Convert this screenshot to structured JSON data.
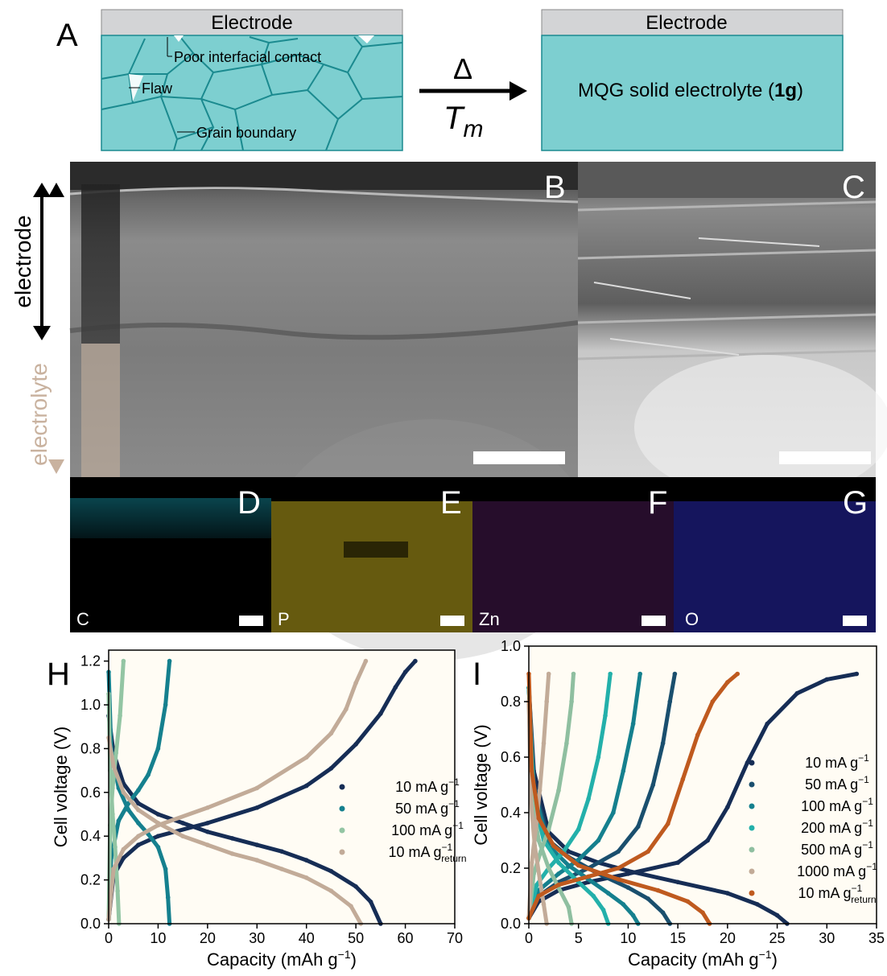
{
  "panel_a": {
    "letter": "A",
    "left_electrode": "Electrode",
    "right_electrode": "Electrode",
    "labels": {
      "poor_contact": "Poor interfacial contact",
      "flaw": "Flaw",
      "grain_boundary": "Grain boundary"
    },
    "arrow_top": "Δ",
    "arrow_bottom_main": "T",
    "arrow_bottom_sub": "m",
    "right_text_pre": "MQG solid electrolyte (",
    "right_text_bold": "1g",
    "right_text_post": ")",
    "colors": {
      "electrode": "#d3d4d6",
      "electrolyte": "#7dcfd0",
      "grain_line": "#1b8a8f"
    }
  },
  "sem": {
    "b_letter": "B",
    "c_letter": "C",
    "side_electrode": "electrode",
    "side_electrolyte": "electrolyte",
    "colors": {
      "electrode_arrow": "#000000",
      "electrolyte_arrow": "#c9b29f"
    }
  },
  "eds": [
    {
      "letter": "D",
      "element": "C",
      "color": "#2ab8c8"
    },
    {
      "letter": "E",
      "element": "P",
      "color": "#b8a51c"
    },
    {
      "letter": "F",
      "element": "Zn",
      "color": "#6a2a78"
    },
    {
      "letter": "G",
      "element": "O",
      "color": "#3a3ab0"
    }
  ],
  "chart_data": [
    {
      "panel": "H",
      "type": "line",
      "xlabel": "Capacity (mAh g",
      "xlabel_sup": "−1",
      "xlabel_post": ")",
      "ylabel": "Cell voltage (V)",
      "xlim": [
        0,
        70
      ],
      "ylim": [
        0,
        1.25
      ],
      "xticks": [
        0,
        10,
        20,
        30,
        40,
        50,
        60,
        70
      ],
      "yticks": [
        0.0,
        0.2,
        0.4,
        0.6,
        0.8,
        1.0,
        1.2
      ],
      "ytick_labels": [
        "0.0",
        "0.2",
        "0.4",
        "0.6",
        "0.8",
        "1.0",
        "1.2"
      ],
      "legend_position": "center-right",
      "series": [
        {
          "name": "10 mA g",
          "sup": "−1",
          "sub": "",
          "color": "#162d55",
          "discharge": [
            [
              0,
              0.95
            ],
            [
              1,
              0.78
            ],
            [
              3,
              0.64
            ],
            [
              6,
              0.55
            ],
            [
              10,
              0.5
            ],
            [
              15,
              0.46
            ],
            [
              20,
              0.42
            ],
            [
              25,
              0.39
            ],
            [
              30,
              0.36
            ],
            [
              35,
              0.33
            ],
            [
              40,
              0.29
            ],
            [
              45,
              0.24
            ],
            [
              50,
              0.17
            ],
            [
              53,
              0.1
            ],
            [
              55,
              0
            ]
          ],
          "charge": [
            [
              0,
              0.02
            ],
            [
              1,
              0.22
            ],
            [
              3,
              0.3
            ],
            [
              6,
              0.36
            ],
            [
              10,
              0.4
            ],
            [
              20,
              0.46
            ],
            [
              30,
              0.53
            ],
            [
              40,
              0.63
            ],
            [
              45,
              0.71
            ],
            [
              50,
              0.82
            ],
            [
              55,
              0.96
            ],
            [
              58,
              1.08
            ],
            [
              60,
              1.15
            ],
            [
              62,
              1.2
            ]
          ]
        },
        {
          "name": "50 mA g",
          "sup": "−1",
          "sub": "",
          "color": "#15808e",
          "discharge": [
            [
              0,
              1.15
            ],
            [
              0.5,
              0.8
            ],
            [
              2,
              0.62
            ],
            [
              4,
              0.52
            ],
            [
              6,
              0.46
            ],
            [
              8,
              0.41
            ],
            [
              10,
              0.35
            ],
            [
              11.5,
              0.25
            ],
            [
              12,
              0.12
            ],
            [
              12.3,
              0
            ]
          ],
          "charge": [
            [
              0,
              0.02
            ],
            [
              0.5,
              0.3
            ],
            [
              2,
              0.47
            ],
            [
              4,
              0.55
            ],
            [
              6,
              0.61
            ],
            [
              8,
              0.68
            ],
            [
              10,
              0.8
            ],
            [
              11.5,
              1.0
            ],
            [
              12.3,
              1.2
            ]
          ]
        },
        {
          "name": "100 mA g",
          "sup": "−1",
          "sub": "",
          "color": "#93c5a3",
          "discharge": [
            [
              0,
              1.05
            ],
            [
              0.3,
              0.7
            ],
            [
              0.8,
              0.5
            ],
            [
              1.3,
              0.35
            ],
            [
              1.8,
              0.15
            ],
            [
              2.1,
              0
            ]
          ],
          "charge": [
            [
              0,
              0.02
            ],
            [
              0.3,
              0.45
            ],
            [
              0.8,
              0.62
            ],
            [
              1.5,
              0.78
            ],
            [
              2.3,
              0.95
            ],
            [
              3,
              1.2
            ]
          ]
        },
        {
          "name": "10 mA g",
          "sup": "−1",
          "sub": "return",
          "color": "#c2ab98",
          "discharge": [
            [
              0,
              0.85
            ],
            [
              1,
              0.72
            ],
            [
              3,
              0.6
            ],
            [
              6,
              0.52
            ],
            [
              10,
              0.46
            ],
            [
              15,
              0.4
            ],
            [
              20,
              0.36
            ],
            [
              25,
              0.32
            ],
            [
              30,
              0.29
            ],
            [
              35,
              0.25
            ],
            [
              40,
              0.21
            ],
            [
              45,
              0.15
            ],
            [
              49,
              0.08
            ],
            [
              51,
              0
            ]
          ],
          "charge": [
            [
              0,
              0.02
            ],
            [
              1,
              0.25
            ],
            [
              3,
              0.34
            ],
            [
              6,
              0.4
            ],
            [
              10,
              0.45
            ],
            [
              20,
              0.53
            ],
            [
              30,
              0.62
            ],
            [
              40,
              0.76
            ],
            [
              45,
              0.87
            ],
            [
              48,
              0.98
            ],
            [
              50,
              1.1
            ],
            [
              52,
              1.2
            ]
          ]
        }
      ]
    },
    {
      "panel": "I",
      "type": "line",
      "xlabel": "Capacity (mAh g",
      "xlabel_sup": "−1",
      "xlabel_post": ")",
      "ylabel": "Cell voltage (V)",
      "xlim": [
        0,
        35
      ],
      "ylim": [
        0,
        1.0
      ],
      "xticks": [
        0,
        5,
        10,
        15,
        20,
        25,
        30,
        35
      ],
      "yticks": [
        0.0,
        0.2,
        0.4,
        0.6,
        0.8,
        1.0
      ],
      "ytick_labels": [
        "0.0",
        "0.2",
        "0.4",
        "0.6",
        "0.8",
        "1.0"
      ],
      "legend_position": "center-right",
      "series": [
        {
          "name": "10 mA g",
          "sup": "−1",
          "sub": "",
          "color": "#162d55",
          "discharge": [
            [
              0,
              0.85
            ],
            [
              0.5,
              0.55
            ],
            [
              2,
              0.33
            ],
            [
              4,
              0.26
            ],
            [
              7,
              0.22
            ],
            [
              10,
              0.19
            ],
            [
              15,
              0.15
            ],
            [
              20,
              0.11
            ],
            [
              23,
              0.07
            ],
            [
              25,
              0.03
            ],
            [
              26,
              0
            ]
          ],
          "charge": [
            [
              0,
              0.02
            ],
            [
              1,
              0.08
            ],
            [
              3,
              0.12
            ],
            [
              6,
              0.15
            ],
            [
              10,
              0.18
            ],
            [
              15,
              0.22
            ],
            [
              18,
              0.3
            ],
            [
              20,
              0.42
            ],
            [
              22,
              0.58
            ],
            [
              24,
              0.72
            ],
            [
              27,
              0.83
            ],
            [
              30,
              0.88
            ],
            [
              33,
              0.9
            ]
          ]
        },
        {
          "name": "50 mA g",
          "sup": "−1",
          "sub": "",
          "color": "#1a4f6e",
          "discharge": [
            [
              0,
              0.85
            ],
            [
              0.5,
              0.5
            ],
            [
              2,
              0.3
            ],
            [
              4,
              0.24
            ],
            [
              7,
              0.18
            ],
            [
              10,
              0.13
            ],
            [
              12,
              0.09
            ],
            [
              13.5,
              0.04
            ],
            [
              14.2,
              0
            ]
          ],
          "charge": [
            [
              0,
              0.02
            ],
            [
              1,
              0.1
            ],
            [
              3,
              0.15
            ],
            [
              6,
              0.2
            ],
            [
              9,
              0.26
            ],
            [
              11,
              0.35
            ],
            [
              12.5,
              0.5
            ],
            [
              13.5,
              0.65
            ],
            [
              14.2,
              0.8
            ],
            [
              14.7,
              0.9
            ]
          ]
        },
        {
          "name": "100 mA g",
          "sup": "−1",
          "sub": "",
          "color": "#15808e",
          "discharge": [
            [
              0,
              0.85
            ],
            [
              0.5,
              0.48
            ],
            [
              2,
              0.28
            ],
            [
              4,
              0.21
            ],
            [
              6,
              0.16
            ],
            [
              8,
              0.11
            ],
            [
              9.5,
              0.07
            ],
            [
              10.5,
              0.03
            ],
            [
              11,
              0
            ]
          ],
          "charge": [
            [
              0,
              0.02
            ],
            [
              1,
              0.12
            ],
            [
              3,
              0.18
            ],
            [
              5,
              0.23
            ],
            [
              7,
              0.3
            ],
            [
              8.5,
              0.4
            ],
            [
              9.5,
              0.55
            ],
            [
              10.5,
              0.72
            ],
            [
              11.2,
              0.9
            ]
          ]
        },
        {
          "name": "200 mA g",
          "sup": "−1",
          "sub": "",
          "color": "#23b0aa",
          "discharge": [
            [
              0,
              0.85
            ],
            [
              0.5,
              0.45
            ],
            [
              1.5,
              0.3
            ],
            [
              3,
              0.22
            ],
            [
              5,
              0.15
            ],
            [
              6.5,
              0.1
            ],
            [
              7.5,
              0.05
            ],
            [
              8,
              0
            ]
          ],
          "charge": [
            [
              0,
              0.02
            ],
            [
              0.8,
              0.14
            ],
            [
              2,
              0.2
            ],
            [
              3.5,
              0.26
            ],
            [
              5,
              0.34
            ],
            [
              6,
              0.45
            ],
            [
              7,
              0.6
            ],
            [
              7.7,
              0.75
            ],
            [
              8.2,
              0.9
            ]
          ]
        },
        {
          "name": "500 mA g",
          "sup": "−1",
          "sub": "",
          "color": "#8fbfa0",
          "discharge": [
            [
              0,
              0.8
            ],
            [
              0.3,
              0.45
            ],
            [
              1,
              0.3
            ],
            [
              2,
              0.2
            ],
            [
              3,
              0.13
            ],
            [
              4,
              0.06
            ],
            [
              4.3,
              0
            ]
          ],
          "charge": [
            [
              0,
              0.02
            ],
            [
              0.5,
              0.18
            ],
            [
              1.2,
              0.26
            ],
            [
              2,
              0.34
            ],
            [
              3,
              0.48
            ],
            [
              3.8,
              0.65
            ],
            [
              4.3,
              0.8
            ],
            [
              4.5,
              0.9
            ]
          ]
        },
        {
          "name": "1000 mA g",
          "sup": "−1",
          "sub": "",
          "color": "#c2ab98",
          "discharge": [
            [
              0,
              0.8
            ],
            [
              0.2,
              0.45
            ],
            [
              0.6,
              0.28
            ],
            [
              1.1,
              0.16
            ],
            [
              1.5,
              0.07
            ],
            [
              1.8,
              0
            ]
          ],
          "charge": [
            [
              0,
              0.02
            ],
            [
              0.3,
              0.22
            ],
            [
              0.7,
              0.34
            ],
            [
              1.1,
              0.48
            ],
            [
              1.5,
              0.65
            ],
            [
              1.8,
              0.8
            ],
            [
              2,
              0.9
            ]
          ]
        },
        {
          "name": "10 mA g",
          "sup": "−1",
          "sub": "return",
          "color": "#bf5a1f",
          "discharge": [
            [
              0,
              0.9
            ],
            [
              0.3,
              0.55
            ],
            [
              1,
              0.38
            ],
            [
              2.5,
              0.28
            ],
            [
              5,
              0.21
            ],
            [
              9,
              0.16
            ],
            [
              13,
              0.12
            ],
            [
              16,
              0.08
            ],
            [
              17.5,
              0.04
            ],
            [
              18.2,
              0
            ]
          ],
          "charge": [
            [
              0,
              0.02
            ],
            [
              1,
              0.1
            ],
            [
              3,
              0.14
            ],
            [
              6,
              0.17
            ],
            [
              9,
              0.2
            ],
            [
              12,
              0.26
            ],
            [
              14,
              0.36
            ],
            [
              15.5,
              0.52
            ],
            [
              17,
              0.68
            ],
            [
              18.5,
              0.8
            ],
            [
              20,
              0.87
            ],
            [
              21,
              0.9
            ]
          ]
        }
      ]
    }
  ]
}
